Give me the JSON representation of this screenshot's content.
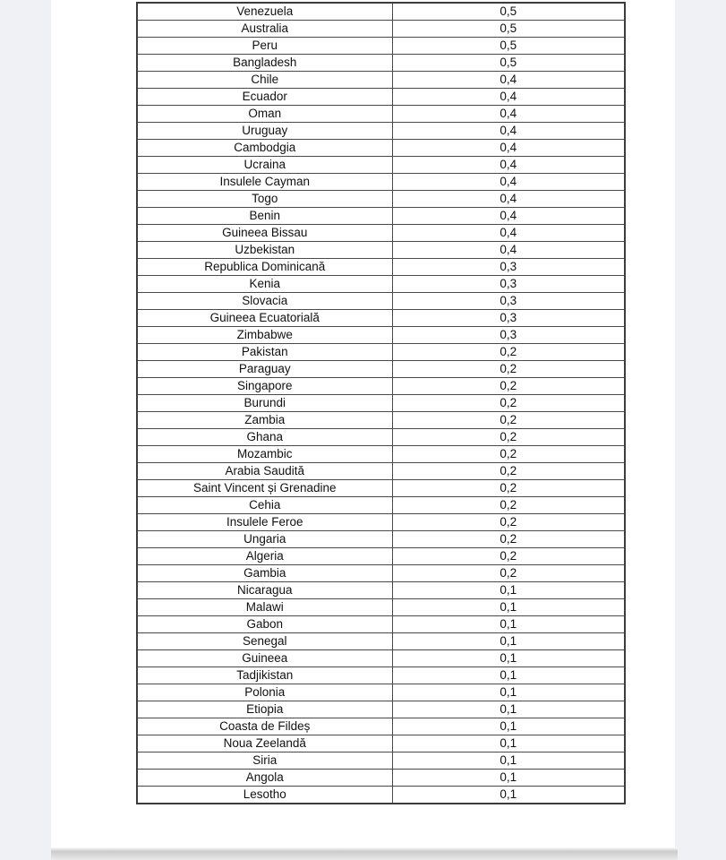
{
  "page": {
    "background_color": "#ffffff",
    "gutter_color": "#f0f1f4",
    "table_border_color": "#4a4a4a",
    "text_color": "#111111"
  },
  "table": {
    "columns": [
      "country",
      "value"
    ],
    "rows": [
      {
        "country": "Venezuela",
        "value": "0,5"
      },
      {
        "country": "Australia",
        "value": "0,5"
      },
      {
        "country": "Peru",
        "value": "0,5"
      },
      {
        "country": "Bangladesh",
        "value": "0,5"
      },
      {
        "country": "Chile",
        "value": "0,4"
      },
      {
        "country": "Ecuador",
        "value": "0,4"
      },
      {
        "country": "Oman",
        "value": "0,4"
      },
      {
        "country": "Uruguay",
        "value": "0,4"
      },
      {
        "country": "Cambodgia",
        "value": "0,4"
      },
      {
        "country": "Ucraina",
        "value": "0,4"
      },
      {
        "country": "Insulele Cayman",
        "value": "0,4"
      },
      {
        "country": "Togo",
        "value": "0,4"
      },
      {
        "country": "Benin",
        "value": "0,4"
      },
      {
        "country": "Guineea Bissau",
        "value": "0,4"
      },
      {
        "country": "Uzbekistan",
        "value": "0,4"
      },
      {
        "country": "Republica Dominicană",
        "value": "0,3"
      },
      {
        "country": "Kenia",
        "value": "0,3"
      },
      {
        "country": "Slovacia",
        "value": "0,3"
      },
      {
        "country": "Guineea Ecuatorială",
        "value": "0,3"
      },
      {
        "country": "Zimbabwe",
        "value": "0,3"
      },
      {
        "country": "Pakistan",
        "value": "0,2"
      },
      {
        "country": "Paraguay",
        "value": "0,2"
      },
      {
        "country": "Singapore",
        "value": "0,2"
      },
      {
        "country": "Burundi",
        "value": "0,2"
      },
      {
        "country": "Zambia",
        "value": "0,2"
      },
      {
        "country": "Ghana",
        "value": "0,2"
      },
      {
        "country": "Mozambic",
        "value": "0,2"
      },
      {
        "country": "Arabia Saudită",
        "value": "0,2"
      },
      {
        "country": "Saint Vincent și Grenadine",
        "value": "0,2"
      },
      {
        "country": "Cehia",
        "value": "0,2"
      },
      {
        "country": "Insulele Feroe",
        "value": "0,2"
      },
      {
        "country": "Ungaria",
        "value": "0,2"
      },
      {
        "country": "Algeria",
        "value": "0,2"
      },
      {
        "country": "Gambia",
        "value": "0,2"
      },
      {
        "country": "Nicaragua",
        "value": "0,1"
      },
      {
        "country": "Malawi",
        "value": "0,1"
      },
      {
        "country": "Gabon",
        "value": "0,1"
      },
      {
        "country": "Senegal",
        "value": "0,1"
      },
      {
        "country": "Guineea",
        "value": "0,1"
      },
      {
        "country": "Tadjikistan",
        "value": "0,1"
      },
      {
        "country": "Polonia",
        "value": "0,1"
      },
      {
        "country": "Etiopia",
        "value": "0,1"
      },
      {
        "country": "Coasta de Fildeș",
        "value": "0,1"
      },
      {
        "country": "Noua Zeelandă",
        "value": "0,1"
      },
      {
        "country": "Siria",
        "value": "0,1"
      },
      {
        "country": "Angola",
        "value": "0,1"
      },
      {
        "country": "Lesotho",
        "value": "0,1"
      }
    ]
  }
}
